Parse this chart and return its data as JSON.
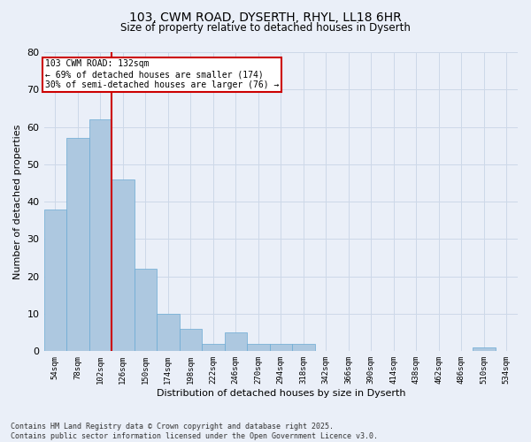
{
  "title_line1": "103, CWM ROAD, DYSERTH, RHYL, LL18 6HR",
  "title_line2": "Size of property relative to detached houses in Dyserth",
  "xlabel": "Distribution of detached houses by size in Dyserth",
  "ylabel": "Number of detached properties",
  "categories": [
    "54sqm",
    "78sqm",
    "102sqm",
    "126sqm",
    "150sqm",
    "174sqm",
    "198sqm",
    "222sqm",
    "246sqm",
    "270sqm",
    "294sqm",
    "318sqm",
    "342sqm",
    "366sqm",
    "390sqm",
    "414sqm",
    "438sqm",
    "462sqm",
    "486sqm",
    "510sqm",
    "534sqm"
  ],
  "values": [
    38,
    57,
    62,
    46,
    22,
    10,
    6,
    2,
    5,
    2,
    2,
    2,
    0,
    0,
    0,
    0,
    0,
    0,
    0,
    1,
    0
  ],
  "bar_color": "#adc8e0",
  "bar_edge_color": "#6aaad4",
  "grid_color": "#cdd8e8",
  "background_color": "#eaeff8",
  "vline_x": 2.5,
  "vline_color": "#cc0000",
  "annotation_text": "103 CWM ROAD: 132sqm\n← 69% of detached houses are smaller (174)\n30% of semi-detached houses are larger (76) →",
  "annotation_box_facecolor": "#ffffff",
  "annotation_box_edgecolor": "#cc0000",
  "ylim": [
    0,
    80
  ],
  "yticks": [
    0,
    10,
    20,
    30,
    40,
    50,
    60,
    70,
    80
  ],
  "footer_line1": "Contains HM Land Registry data © Crown copyright and database right 2025.",
  "footer_line2": "Contains public sector information licensed under the Open Government Licence v3.0."
}
